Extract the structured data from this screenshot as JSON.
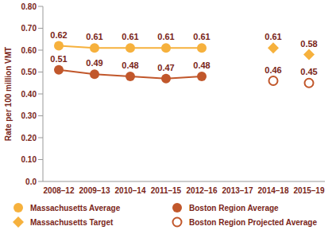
{
  "chart_data": {
    "type": "line",
    "y_label": "Rate per 100 million VMT",
    "categories": [
      "2008–12",
      "2009–13",
      "2010–14",
      "2011–15",
      "2012–16",
      "2013–17",
      "2014–18",
      "2015–19"
    ],
    "ylim": [
      0,
      0.8
    ],
    "yticks": [
      {
        "value": 0,
        "label": "0.0"
      },
      {
        "value": 0.1,
        "label": "0.10"
      },
      {
        "value": 0.2,
        "label": "0.20"
      },
      {
        "value": 0.3,
        "label": "0.30"
      },
      {
        "value": 0.4,
        "label": "0.40"
      },
      {
        "value": 0.5,
        "label": "0.50"
      },
      {
        "value": 0.6,
        "label": "0.60"
      },
      {
        "value": 0.7,
        "label": "0.70"
      },
      {
        "value": 0.8,
        "label": "0.80"
      }
    ],
    "grid": false,
    "legend": "bottom",
    "data_labels": true,
    "series": [
      {
        "name": "Massachusetts Average",
        "color": "#f6b13d",
        "marker": "circle",
        "line_style": "solid",
        "values": [
          0.62,
          0.61,
          0.61,
          0.61,
          0.61,
          null,
          null,
          null
        ]
      },
      {
        "name": "Boston Region Average",
        "color": "#c1572b",
        "marker": "circle",
        "line_style": "solid",
        "values": [
          0.51,
          0.49,
          0.48,
          0.47,
          0.48,
          null,
          null,
          null
        ]
      },
      {
        "name": "Massachusetts Target",
        "color": "#f6b13d",
        "marker": "diamond",
        "line_style": "none",
        "values": [
          null,
          null,
          null,
          null,
          null,
          null,
          0.61,
          0.58
        ]
      },
      {
        "name": "Boston Region Projected Average",
        "color": "#c1572b",
        "marker": "open_circle",
        "line_style": "none",
        "values": [
          null,
          null,
          null,
          null,
          null,
          null,
          0.46,
          0.45
        ]
      }
    ]
  }
}
